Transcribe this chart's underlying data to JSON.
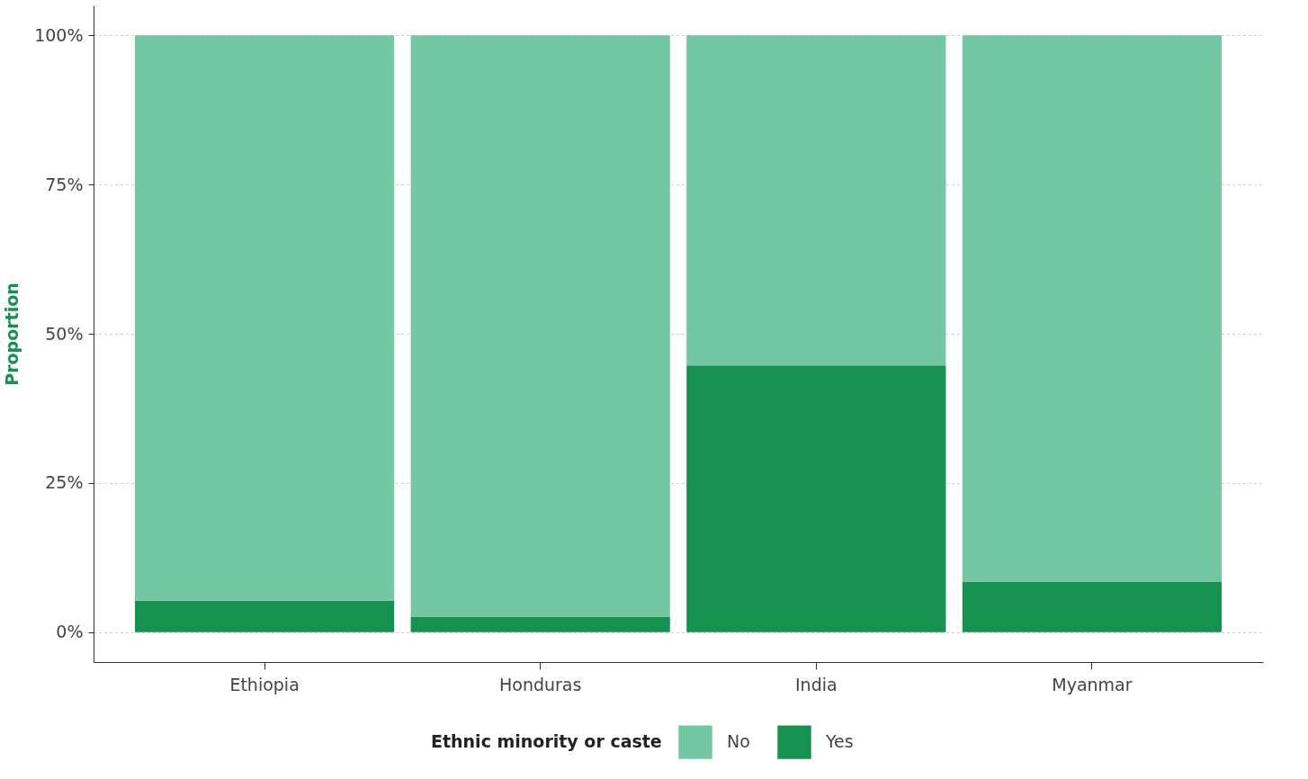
{
  "chart_data": {
    "type": "bar",
    "stacked": true,
    "ylabel": "Proportion",
    "legend_title": "Ethnic minority or caste",
    "legend": "bottom",
    "grid": "y",
    "categories": [
      "Ethiopia",
      "Honduras",
      "India",
      "Myanmar"
    ],
    "series": [
      {
        "name": "Yes",
        "color": "#16914f",
        "values": [
          5.3,
          2.6,
          44.7,
          8.5
        ]
      },
      {
        "name": "No",
        "color": "#73c7a3",
        "values": [
          94.7,
          97.4,
          55.3,
          91.5
        ]
      }
    ],
    "ylim": [
      -5,
      105
    ],
    "yticks": [
      {
        "value": 0,
        "label": "0%"
      },
      {
        "value": 25,
        "label": "25%"
      },
      {
        "value": 50,
        "label": "50%"
      },
      {
        "value": 75,
        "label": "75%"
      },
      {
        "value": 100,
        "label": "100%"
      }
    ]
  }
}
